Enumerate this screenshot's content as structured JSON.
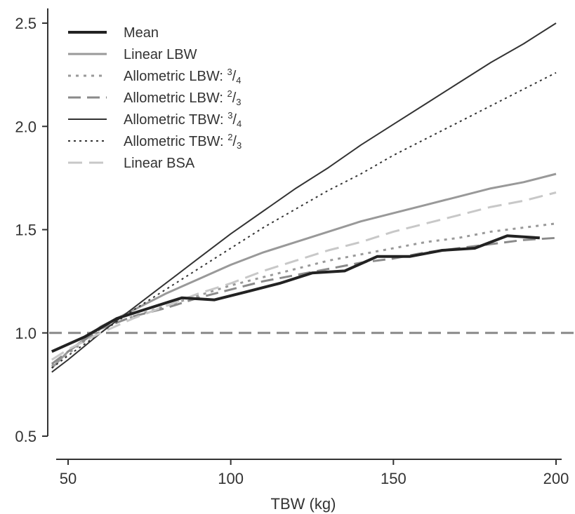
{
  "chart_data": {
    "type": "line",
    "xlabel": "TBW (kg)",
    "ylabel": "",
    "xlim": [
      45,
      205
    ],
    "ylim": [
      0.5,
      2.62
    ],
    "xticks": [
      50,
      100,
      150,
      200
    ],
    "yticks": [
      0.5,
      1.0,
      1.5,
      2.0,
      2.5
    ],
    "x_tick_labels": [
      "50",
      "100",
      "150",
      "200"
    ],
    "y_tick_labels": [
      "0.5",
      "1.0",
      "1.5",
      "2.0",
      "2.5"
    ],
    "grid": false,
    "legend_position": "top-left",
    "reference_line": {
      "y": 1.0,
      "color": "#888888",
      "dash": "dashed"
    },
    "series": [
      {
        "name": "Mean",
        "color": "#222222",
        "dash": "solid",
        "width": 4,
        "legend_main": "Mean",
        "legend_fraction": null,
        "x": [
          45,
          55,
          65,
          75,
          85,
          95,
          105,
          115,
          125,
          135,
          145,
          155,
          165,
          175,
          185,
          195
        ],
        "y": [
          0.91,
          0.98,
          1.07,
          1.12,
          1.17,
          1.16,
          1.2,
          1.24,
          1.29,
          1.3,
          1.37,
          1.37,
          1.4,
          1.41,
          1.47,
          1.46
        ]
      },
      {
        "name": "Linear LBW",
        "color": "#999999",
        "dash": "solid",
        "width": 3,
        "legend_main": "Linear LBW",
        "legend_fraction": null,
        "x": [
          45,
          50,
          60,
          70,
          80,
          90,
          100,
          110,
          120,
          130,
          140,
          150,
          160,
          170,
          180,
          190,
          200
        ],
        "y": [
          0.83,
          0.91,
          1.03,
          1.11,
          1.19,
          1.26,
          1.33,
          1.39,
          1.44,
          1.49,
          1.54,
          1.58,
          1.62,
          1.66,
          1.7,
          1.73,
          1.77
        ]
      },
      {
        "name": "Allometric LBW: 3/4",
        "color": "#9a9a9a",
        "dash": "4,7",
        "width": 3,
        "legend_main": "Allometric LBW: ",
        "legend_fraction": [
          "3",
          "4"
        ],
        "x": [
          45,
          50,
          60,
          70,
          80,
          90,
          100,
          110,
          120,
          130,
          140,
          150,
          160,
          170,
          180,
          190,
          200
        ],
        "y": [
          0.84,
          0.9,
          1.02,
          1.08,
          1.13,
          1.18,
          1.23,
          1.27,
          1.31,
          1.35,
          1.38,
          1.41,
          1.44,
          1.46,
          1.49,
          1.51,
          1.53
        ]
      },
      {
        "name": "Allometric LBW: 2/3",
        "color": "#8a8a8a",
        "dash": "18,9",
        "width": 3,
        "legend_main": "Allometric LBW: ",
        "legend_fraction": [
          "2",
          "3"
        ],
        "x": [
          45,
          50,
          60,
          70,
          80,
          90,
          100,
          110,
          120,
          130,
          140,
          150,
          160,
          170,
          180,
          190,
          200
        ],
        "y": [
          0.85,
          0.91,
          1.02,
          1.08,
          1.12,
          1.17,
          1.21,
          1.25,
          1.28,
          1.31,
          1.34,
          1.36,
          1.39,
          1.41,
          1.43,
          1.45,
          1.46
        ]
      },
      {
        "name": "Allometric TBW: 3/4",
        "color": "#333333",
        "dash": "solid",
        "width": 2,
        "legend_main": "Allometric TBW: ",
        "legend_fraction": [
          "3",
          "4"
        ],
        "x": [
          45,
          50,
          60,
          70,
          80,
          90,
          100,
          110,
          120,
          130,
          140,
          150,
          160,
          170,
          180,
          190,
          200
        ],
        "y": [
          0.81,
          0.87,
          1.0,
          1.12,
          1.24,
          1.36,
          1.48,
          1.59,
          1.7,
          1.8,
          1.91,
          2.01,
          2.11,
          2.21,
          2.31,
          2.4,
          2.5
        ]
      },
      {
        "name": "Allometric TBW: 2/3",
        "color": "#333333",
        "dash": "3,5",
        "width": 2,
        "legend_main": "Allometric TBW: ",
        "legend_fraction": [
          "2",
          "3"
        ],
        "x": [
          45,
          50,
          60,
          70,
          80,
          90,
          100,
          110,
          120,
          130,
          140,
          150,
          160,
          170,
          180,
          190,
          200
        ],
        "y": [
          0.83,
          0.89,
          1.0,
          1.11,
          1.21,
          1.31,
          1.41,
          1.51,
          1.6,
          1.69,
          1.77,
          1.86,
          1.94,
          2.02,
          2.1,
          2.18,
          2.26
        ]
      },
      {
        "name": "Linear BSA",
        "color": "#c8c8c8",
        "dash": "20,10",
        "width": 3,
        "legend_main": "Linear BSA",
        "legend_fraction": null,
        "x": [
          45,
          50,
          60,
          70,
          80,
          90,
          100,
          110,
          120,
          130,
          140,
          150,
          160,
          170,
          180,
          190,
          200
        ],
        "y": [
          0.87,
          0.92,
          1.0,
          1.07,
          1.13,
          1.19,
          1.24,
          1.3,
          1.35,
          1.4,
          1.44,
          1.49,
          1.53,
          1.57,
          1.61,
          1.64,
          1.68
        ]
      }
    ]
  }
}
